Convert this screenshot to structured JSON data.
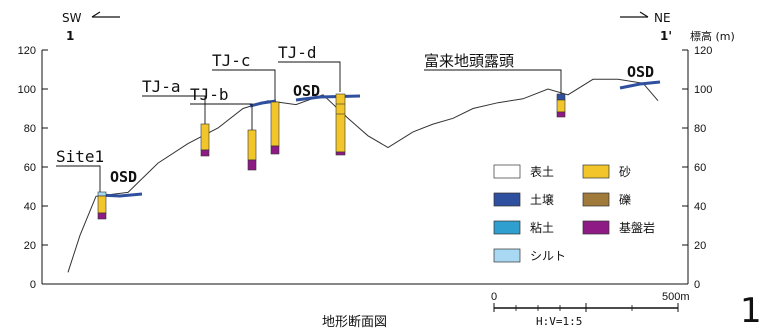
{
  "orientation": {
    "left": "SW",
    "right": "NE",
    "left_point": "1",
    "right_point": "1'"
  },
  "axis": {
    "label": "標高 (m)",
    "ticks": [
      "0",
      "20",
      "40",
      "60",
      "80",
      "100",
      "120"
    ],
    "ymin": 0,
    "ymax": 120
  },
  "profile": {
    "x_m": [
      0,
      12,
      28,
      60,
      90,
      120,
      150,
      175,
      200,
      228,
      255,
      280,
      300,
      320,
      345,
      365,
      385,
      405,
      430,
      455,
      480,
      500,
      525,
      550,
      575,
      590
    ],
    "elevation": [
      6,
      25,
      45,
      47,
      62,
      72,
      80,
      90,
      94,
      92,
      97,
      85,
      76,
      70,
      78,
      82,
      85,
      90,
      93,
      95,
      100,
      97,
      105,
      105,
      103,
      94
    ]
  },
  "labels": {
    "site1": "Site1",
    "tj_a": "TJ-a",
    "tj_b": "TJ-b",
    "tj_c": "TJ-c",
    "tj_d": "TJ-d",
    "outcrop": "富来地頭露頭",
    "osd": "OSD",
    "title": "地形断面図",
    "scale_ratio": "H:V=1:5",
    "scale_start": "0",
    "scale_end": "500m",
    "panel_number": "1"
  },
  "legend": [
    {
      "name": "表土",
      "color": "#ffffff"
    },
    {
      "name": "砂",
      "color": "#f2c52a"
    },
    {
      "name": "土壌",
      "color": "#2f4f9f"
    },
    {
      "name": "礫",
      "color": "#a07a3a"
    },
    {
      "name": "粘土",
      "color": "#2f9fd0"
    },
    {
      "name": "基盤岩",
      "color": "#8e1a86"
    },
    {
      "name": "シルト",
      "color": "#a9d8f2"
    }
  ]
}
